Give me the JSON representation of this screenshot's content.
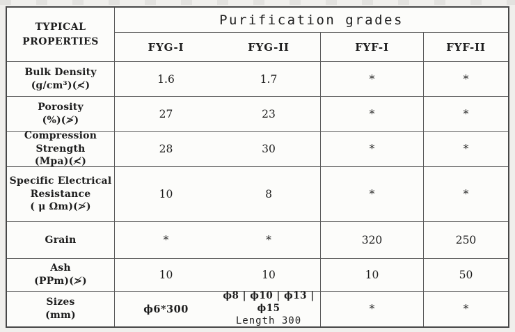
{
  "colors": {
    "ink": "#1d1d1d",
    "grid_line": "#585858",
    "outer_border": "#474747",
    "paper": "#fcfcfa",
    "page_background": "#f0efec"
  },
  "table": {
    "corner_header": {
      "line1": "TYPICAL",
      "line2": "PROPERTIES"
    },
    "grades_title": "Purification grades",
    "columns": [
      "FYG-I",
      "FYG-II",
      "FYF-I",
      "FYF-II"
    ],
    "rows": [
      {
        "label_lines": [
          "Bulk Density",
          "(g/cm³)(≮)"
        ],
        "values": [
          "1.6",
          "1.7",
          "*",
          "*"
        ]
      },
      {
        "label_lines": [
          "Porosity",
          "(%)(≯)"
        ],
        "values": [
          "27",
          "23",
          "*",
          "*"
        ]
      },
      {
        "label_lines": [
          "Compression Strength",
          "(Mpa)(≮)"
        ],
        "values": [
          "28",
          "30",
          "*",
          "*"
        ]
      },
      {
        "label_lines": [
          "Specific Electrical",
          "Resistance",
          "( μ Ωm)(≯)"
        ],
        "values": [
          "10",
          "8",
          "*",
          "*"
        ]
      },
      {
        "label_lines": [
          "Grain"
        ],
        "values": [
          "*",
          "*",
          "320",
          "250"
        ]
      },
      {
        "label_lines": [
          "Ash",
          "(PPm)(≯)"
        ],
        "values": [
          "10",
          "10",
          "10",
          "50"
        ]
      },
      {
        "label_lines": [
          "Sizes",
          "(mm)"
        ],
        "values": [
          "ϕ6*300",
          [
            "ϕ8 | ϕ10 | ϕ13 | ϕ15",
            "Length 300"
          ],
          "*",
          "*"
        ]
      }
    ]
  }
}
